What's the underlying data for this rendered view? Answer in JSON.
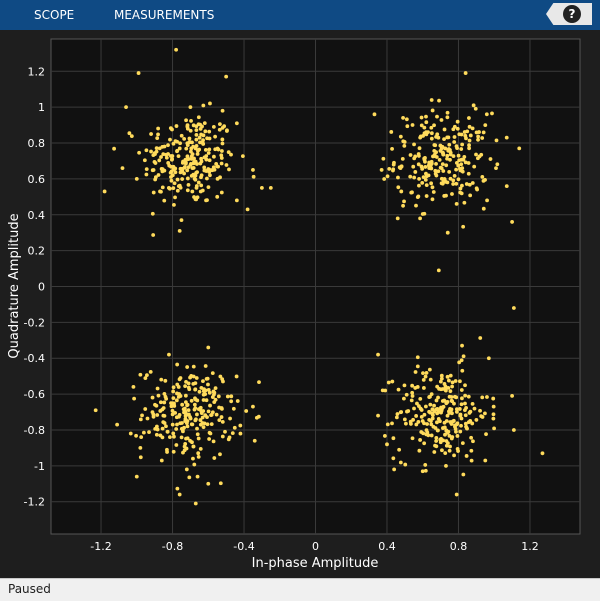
{
  "toolstrip": {
    "tabs": [
      {
        "label": "SCOPE"
      },
      {
        "label": "MEASUREMENTS"
      }
    ],
    "help_label": "?"
  },
  "status": {
    "text": "Paused"
  },
  "colors": {
    "background": "#1e1e1e",
    "axes": "#111111",
    "grid": "#3a3a3a",
    "points": "#ffdb5c",
    "toolstrip": "#0f4a84"
  },
  "chart_data": {
    "type": "scatter",
    "title": "",
    "xlabel": "In-phase Amplitude",
    "ylabel": "Quadrature Amplitude",
    "xlim": [
      -1.48,
      1.48
    ],
    "ylim": [
      -1.38,
      1.38
    ],
    "xticks": [
      -1.2,
      -0.8,
      -0.4,
      0,
      0.4,
      0.8,
      1.2
    ],
    "xtick_labels": [
      "-1.2",
      "-0.8",
      "-0.4",
      "0",
      "0.4",
      "0.8",
      "1.2"
    ],
    "yticks": [
      -1.2,
      -1,
      -0.8,
      -0.6,
      -0.4,
      -0.2,
      0,
      0.2,
      0.4,
      0.6,
      0.8,
      1,
      1.2
    ],
    "ytick_labels": [
      "-1.2",
      "-1",
      "-0.8",
      "-0.6",
      "-0.4",
      "-0.2",
      "0",
      "0.2",
      "0.4",
      "0.6",
      "0.8",
      "1",
      "1.2"
    ],
    "grid": true,
    "clusters": [
      {
        "center": [
          -0.707,
          0.707
        ],
        "count": 240,
        "spread": 0.13
      },
      {
        "center": [
          0.707,
          0.707
        ],
        "count": 240,
        "spread": 0.13
      },
      {
        "center": [
          -0.707,
          -0.707
        ],
        "count": 240,
        "spread": 0.13
      },
      {
        "center": [
          0.707,
          -0.707
        ],
        "count": 240,
        "spread": 0.13
      }
    ],
    "points": [
      [
        -0.99,
        1.19
      ],
      [
        -0.78,
        1.32
      ],
      [
        -0.5,
        1.17
      ],
      [
        -1.06,
        1.0
      ],
      [
        -0.92,
        0.85
      ],
      [
        -0.7,
        1.0
      ],
      [
        -0.52,
        0.98
      ],
      [
        -0.44,
        0.91
      ],
      [
        -1.08,
        0.66
      ],
      [
        -1.0,
        0.6
      ],
      [
        -1.18,
        0.53
      ],
      [
        -0.87,
        0.53
      ],
      [
        -0.55,
        0.5
      ],
      [
        -0.44,
        0.48
      ],
      [
        -0.3,
        0.55
      ],
      [
        -0.38,
        0.43
      ],
      [
        -0.75,
        0.37
      ],
      [
        -0.76,
        0.31
      ],
      [
        -0.35,
        0.65
      ],
      [
        -0.25,
        0.55
      ],
      [
        0.84,
        1.19
      ],
      [
        0.65,
        1.04
      ],
      [
        0.33,
        0.96
      ],
      [
        0.49,
        0.94
      ],
      [
        0.95,
        0.9
      ],
      [
        1.07,
        0.83
      ],
      [
        1.14,
        0.77
      ],
      [
        0.37,
        0.65
      ],
      [
        0.48,
        0.53
      ],
      [
        0.49,
        0.45
      ],
      [
        0.46,
        0.38
      ],
      [
        0.74,
        0.3
      ],
      [
        1.1,
        0.36
      ],
      [
        0.96,
        0.48
      ],
      [
        1.01,
        0.66
      ],
      [
        0.69,
        0.09
      ],
      [
        1.11,
        -0.12
      ],
      [
        0.35,
        -0.38
      ],
      [
        0.82,
        -0.33
      ],
      [
        0.97,
        -0.4
      ],
      [
        0.39,
        -0.58
      ],
      [
        0.43,
        -0.53
      ],
      [
        1.1,
        -0.61
      ],
      [
        0.4,
        -0.88
      ],
      [
        0.44,
        -1.02
      ],
      [
        0.6,
        -1.03
      ],
      [
        0.73,
        -1.0
      ],
      [
        0.79,
        -1.16
      ],
      [
        0.95,
        -0.97
      ],
      [
        1.11,
        -0.8
      ],
      [
        1.27,
        -0.93
      ],
      [
        0.35,
        -0.72
      ],
      [
        -0.82,
        -0.38
      ],
      [
        -0.6,
        -0.34
      ],
      [
        -1.23,
        -0.69
      ],
      [
        -1.11,
        -0.77
      ],
      [
        -0.35,
        -0.67
      ],
      [
        -0.42,
        -0.82
      ],
      [
        -0.34,
        -0.86
      ],
      [
        -0.98,
        -0.9
      ],
      [
        -1.0,
        -1.06
      ],
      [
        -0.72,
        -1.02
      ],
      [
        -0.66,
        -1.06
      ],
      [
        -0.6,
        -1.1
      ],
      [
        -0.76,
        -1.16
      ],
      [
        -0.67,
        -1.21
      ],
      [
        -0.86,
        -0.97
      ]
    ]
  }
}
